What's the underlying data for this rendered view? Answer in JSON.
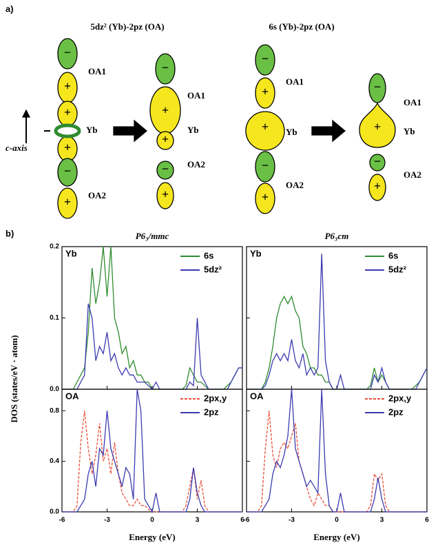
{
  "diagram": {
    "label": "a)",
    "titles": [
      "5dz² (Yb)-2pz (OA)",
      "6s (Yb)-2pz (OA)"
    ],
    "axis_label": "c-axis",
    "atom_labels": [
      "OA1",
      "Yb",
      "OA2"
    ],
    "signs": [
      "−",
      "+"
    ]
  },
  "figure": {
    "label": "b)",
    "ylabel": "DOS (states/eV · atom)"
  },
  "chart_data": [
    {
      "type": "line",
      "title": "P6₃/mmc",
      "panel_label": "Yb",
      "legend": "upper right",
      "x": [
        -6,
        -5.75,
        -5.5,
        -5.25,
        -5,
        -4.75,
        -4.5,
        -4.25,
        -4,
        -3.75,
        -3.5,
        -3.25,
        -3,
        -2.75,
        -2.5,
        -2.25,
        -2,
        -1.75,
        -1.5,
        -1.25,
        -1,
        -0.75,
        -0.5,
        -0.25,
        0,
        0.25,
        0.5,
        0.75,
        1,
        1.25,
        1.5,
        1.75,
        2,
        2.25,
        2.5,
        2.75,
        3,
        3.25,
        3.5,
        3.75,
        4,
        4.25,
        4.5,
        4.75,
        5,
        5.25,
        5.5,
        5.75,
        6
      ],
      "xlim": [
        -6,
        6
      ],
      "xticks": [
        -6,
        -3,
        0,
        3,
        6
      ],
      "ylim": [
        0,
        0.2
      ],
      "yticks": [
        {
          "value": 0,
          "label": "0.0"
        },
        0.1,
        0.2
      ],
      "series": [
        {
          "name": "6s",
          "color": "#2e8b2e",
          "values": [
            0,
            0,
            0,
            0,
            0.01,
            0.02,
            0.03,
            0.08,
            0.17,
            0.12,
            0.15,
            0.2,
            0.13,
            0.2,
            0.1,
            0.08,
            0.05,
            0.06,
            0.03,
            0.04,
            0.02,
            0.02,
            0.01,
            0.01,
            0,
            0,
            0,
            0,
            0,
            0,
            0,
            0,
            0,
            0.005,
            0.03,
            0.02,
            0.01,
            0.01,
            0.005,
            0,
            0,
            0,
            0,
            0,
            0.005,
            0.01,
            0.02,
            0.03,
            0.03
          ]
        },
        {
          "name": "5dz²",
          "color": "#3a3ab0",
          "values": [
            0,
            0,
            0,
            0,
            0,
            0.01,
            0.02,
            0.12,
            0.1,
            0.04,
            0.06,
            0.05,
            0.08,
            0.04,
            0.05,
            0.03,
            0.02,
            0.03,
            0.02,
            0.02,
            0.01,
            0.01,
            0.01,
            0.005,
            0,
            0.01,
            0,
            0,
            0,
            0,
            0,
            0,
            0,
            0,
            0.01,
            0.005,
            0.1,
            0.02,
            0.01,
            0,
            0,
            0,
            0,
            0,
            0,
            0.01,
            0.02,
            0.03,
            0.03
          ]
        }
      ]
    },
    {
      "type": "line",
      "title": "P6₃cm",
      "panel_label": "Yb",
      "legend": "upper right",
      "x": [
        -6,
        -5.75,
        -5.5,
        -5.25,
        -5,
        -4.75,
        -4.5,
        -4.25,
        -4,
        -3.75,
        -3.5,
        -3.25,
        -3,
        -2.75,
        -2.5,
        -2.25,
        -2,
        -1.75,
        -1.5,
        -1.25,
        -1,
        -0.75,
        -0.5,
        -0.25,
        0,
        0.25,
        0.5,
        0.75,
        1,
        1.25,
        1.5,
        1.75,
        2,
        2.25,
        2.5,
        2.75,
        3,
        3.25,
        3.5,
        3.75,
        4,
        4.25,
        4.5,
        4.75,
        5,
        5.25,
        5.5,
        5.75,
        6
      ],
      "xlim": [
        -6,
        6
      ],
      "xticks": [
        -6,
        -3,
        0,
        3,
        6
      ],
      "ylim": [
        0,
        0.2
      ],
      "yticks": [
        {
          "value": 0,
          "label": "0.0"
        },
        0.1,
        0.2
      ],
      "series": [
        {
          "name": "6s",
          "color": "#2e8b2e",
          "values": [
            0,
            0,
            0,
            0,
            0,
            0.01,
            0.03,
            0.06,
            0.1,
            0.12,
            0.13,
            0.12,
            0.13,
            0.11,
            0.1,
            0.06,
            0.05,
            0.03,
            0.03,
            0.02,
            0.02,
            0.01,
            0.01,
            0,
            0,
            0,
            0,
            0,
            0,
            0,
            0,
            0,
            0,
            0.005,
            0.03,
            0.01,
            0.02,
            0.01,
            0,
            0,
            0,
            0,
            0,
            0,
            0,
            0.005,
            0.01,
            0.02,
            0.03
          ]
        },
        {
          "name": "5dz²",
          "color": "#3a3ab0",
          "values": [
            0,
            0,
            0,
            0,
            0,
            0.005,
            0.02,
            0.04,
            0.05,
            0.04,
            0.05,
            0.04,
            0.07,
            0.04,
            0.03,
            0.05,
            0.02,
            0.03,
            0.02,
            0.03,
            0.19,
            0.04,
            0.01,
            0,
            0,
            0.02,
            0,
            0,
            0,
            0,
            0,
            0,
            0,
            0,
            0.02,
            0.01,
            0.03,
            0.01,
            0,
            0,
            0,
            0,
            0,
            0,
            0,
            0,
            0.01,
            0.02,
            0.03
          ]
        }
      ]
    },
    {
      "type": "line",
      "panel_label": "OA",
      "legend": "upper right",
      "xlabel": "Energy (eV)",
      "x": [
        -6,
        -5.75,
        -5.5,
        -5.25,
        -5,
        -4.75,
        -4.5,
        -4.25,
        -4,
        -3.75,
        -3.5,
        -3.25,
        -3,
        -2.75,
        -2.5,
        -2.25,
        -2,
        -1.75,
        -1.5,
        -1.25,
        -1,
        -0.75,
        -0.5,
        -0.25,
        0,
        0.25,
        0.5,
        0.75,
        1,
        1.25,
        1.5,
        1.75,
        2,
        2.25,
        2.5,
        2.75,
        3,
        3.25,
        3.5,
        3.75,
        4,
        4.25,
        4.5,
        4.75,
        5,
        5.25,
        5.5,
        5.75,
        6
      ],
      "xlim": [
        -6,
        6
      ],
      "xticks": [
        -6,
        -3,
        0,
        3,
        6
      ],
      "ylim": [
        0,
        0.97
      ],
      "yticks": [
        {
          "value": 0,
          "label": "0.0"
        },
        0.4,
        0.8
      ],
      "series": [
        {
          "name": "2px,y",
          "color": "#e8503a",
          "dashed": true,
          "values": [
            0,
            0,
            0,
            0,
            0.05,
            0.55,
            0.8,
            0.5,
            0.3,
            0.45,
            0.7,
            0.4,
            0.5,
            0.3,
            0.55,
            0.3,
            0.15,
            0.1,
            0.05,
            0.05,
            0.1,
            0.05,
            0.05,
            0.02,
            0,
            0,
            0,
            0,
            0,
            0,
            0,
            0,
            0,
            0.05,
            0.2,
            0.35,
            0.1,
            0.25,
            0.05,
            0,
            0,
            0,
            0,
            0,
            0,
            0,
            0,
            0,
            0
          ]
        },
        {
          "name": "2pz",
          "color": "#3a3ab0",
          "values": [
            0,
            0,
            0,
            0,
            0,
            0.05,
            0.1,
            0.3,
            0.4,
            0.2,
            0.5,
            0.45,
            0.8,
            0.5,
            0.4,
            0.3,
            0.2,
            0.35,
            0.3,
            0.1,
            0.97,
            0.8,
            0.1,
            0.05,
            0,
            0.15,
            0,
            0,
            0,
            0,
            0,
            0,
            0,
            0,
            0.1,
            0.35,
            0.15,
            0.05,
            0,
            0,
            0,
            0,
            0,
            0,
            0,
            0,
            0,
            0,
            0
          ]
        }
      ]
    },
    {
      "type": "line",
      "panel_label": "OA",
      "legend": "upper right",
      "xlabel": "Energy (eV)",
      "x": [
        -6,
        -5.75,
        -5.5,
        -5.25,
        -5,
        -4.75,
        -4.5,
        -4.25,
        -4,
        -3.75,
        -3.5,
        -3.25,
        -3,
        -2.75,
        -2.5,
        -2.25,
        -2,
        -1.75,
        -1.5,
        -1.25,
        -1,
        -0.75,
        -0.5,
        -0.25,
        0,
        0.25,
        0.5,
        0.75,
        1,
        1.25,
        1.5,
        1.75,
        2,
        2.25,
        2.5,
        2.75,
        3,
        3.25,
        3.5,
        3.75,
        4,
        4.25,
        4.5,
        4.75,
        5,
        5.25,
        5.5,
        5.75,
        6
      ],
      "xlim": [
        -6,
        6
      ],
      "xticks": [
        -6,
        -3,
        0,
        3,
        6
      ],
      "ylim": [
        0,
        0.97
      ],
      "yticks": [
        {
          "value": 0,
          "label": "0.0"
        },
        0.4,
        0.8
      ],
      "series": [
        {
          "name": "2px,y",
          "color": "#e8503a",
          "dashed": true,
          "values": [
            0,
            0,
            0,
            0,
            0.05,
            0.5,
            0.8,
            0.45,
            0.35,
            0.5,
            0.55,
            0.5,
            0.6,
            0.7,
            0.4,
            0.3,
            0.2,
            0.1,
            0.05,
            0.15,
            0.1,
            0.05,
            0.05,
            0,
            0,
            0,
            0,
            0,
            0,
            0,
            0,
            0,
            0,
            0.05,
            0.3,
            0.25,
            0.3,
            0.05,
            0,
            0,
            0,
            0,
            0,
            0,
            0,
            0,
            0,
            0,
            0
          ]
        },
        {
          "name": "2pz",
          "color": "#3a3ab0",
          "values": [
            0,
            0,
            0,
            0,
            0,
            0.05,
            0.1,
            0.3,
            0.4,
            0.35,
            0.45,
            0.6,
            0.97,
            0.5,
            0.4,
            0.3,
            0.2,
            0.25,
            0.2,
            0.15,
            0.97,
            0.3,
            0.05,
            0,
            0,
            0.15,
            0,
            0,
            0,
            0,
            0,
            0,
            0,
            0,
            0.1,
            0.27,
            0.1,
            0,
            0,
            0,
            0,
            0,
            0,
            0,
            0,
            0,
            0,
            0,
            0
          ]
        }
      ]
    }
  ]
}
